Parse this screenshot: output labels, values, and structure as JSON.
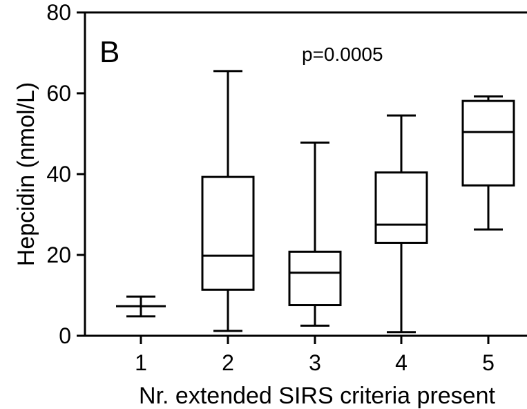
{
  "chart_data": {
    "type": "boxplot",
    "panel_label": "B",
    "annotation": "p=0.0005",
    "xlabel": "Nr. extended SIRS criteria present",
    "ylabel": "Hepcidin (nmol/L)",
    "ylim": [
      0,
      80
    ],
    "yticks": [
      0,
      20,
      40,
      60,
      80
    ],
    "categories": [
      "1",
      "2",
      "3",
      "4",
      "5"
    ],
    "boxes": [
      {
        "category": "1",
        "min": 4.8,
        "q1": 7.3,
        "median": 7.3,
        "q3": 7.3,
        "max": 9.7
      },
      {
        "category": "2",
        "min": 1.2,
        "q1": 11.4,
        "median": 19.8,
        "q3": 39.3,
        "max": 65.5
      },
      {
        "category": "3",
        "min": 2.5,
        "q1": 7.6,
        "median": 15.6,
        "q3": 20.8,
        "max": 47.8
      },
      {
        "category": "4",
        "min": 0.9,
        "q1": 23.0,
        "median": 27.5,
        "q3": 40.4,
        "max": 54.5
      },
      {
        "category": "5",
        "min": 26.3,
        "q1": 37.2,
        "median": 50.4,
        "q3": 58.1,
        "max": 59.2
      }
    ],
    "grid": false,
    "legend": "none"
  }
}
